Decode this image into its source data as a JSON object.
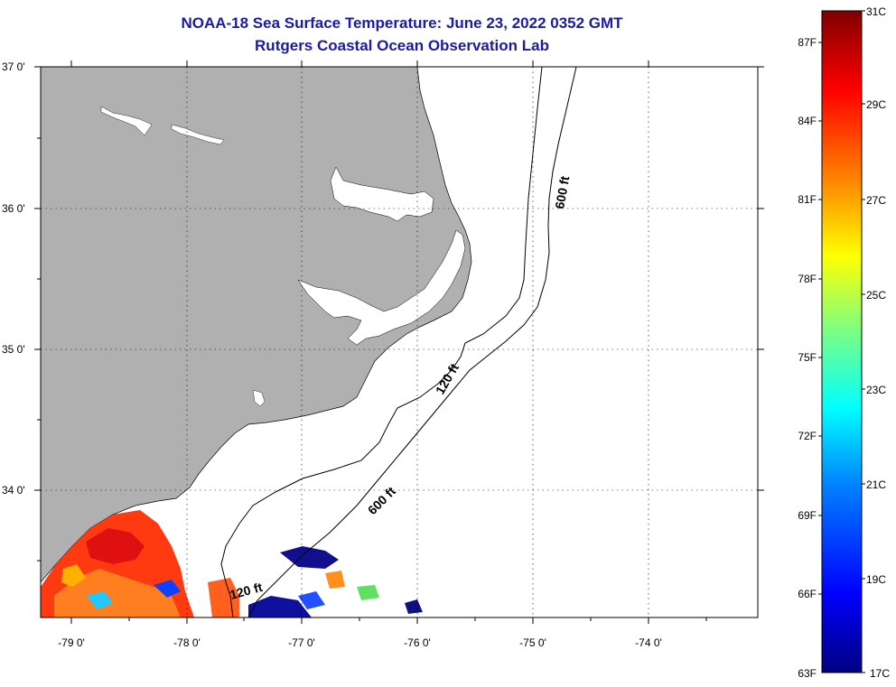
{
  "title": {
    "line1": "NOAA-18 Sea Surface Temperature:  June 23, 2022 0352 GMT",
    "line2": "Rutgers Coastal Ocean Observation Lab"
  },
  "map": {
    "lat_labels": [
      "37 0'",
      "36 0'",
      "35 0'",
      "34 0'"
    ],
    "lon_labels": [
      "-79 0'",
      "-78 0'",
      "-77 0'",
      "-76 0'",
      "-75 0'",
      "-74 0'"
    ],
    "isobath_labels": [
      {
        "text": "600 ft"
      },
      {
        "text": "120 ft"
      },
      {
        "text": "600 ft"
      },
      {
        "text": "120 ft"
      }
    ],
    "colors": {
      "land": "#b0b0b0",
      "ocean": "#ffffff",
      "grid": "#000000"
    }
  },
  "colorbar": {
    "celsius_labels": [
      "31C",
      "29C",
      "27C",
      "25C",
      "23C",
      "21C",
      "19C",
      "17C"
    ],
    "fahrenheit_labels": [
      "87F",
      "84F",
      "81F",
      "78F",
      "75F",
      "72F",
      "69F",
      "66F",
      "63F"
    ],
    "colormap": [
      "#00007f",
      "#0000ff",
      "#007fff",
      "#00ffff",
      "#7fff7f",
      "#ffff00",
      "#ff7f00",
      "#ff0000",
      "#7f0000"
    ]
  }
}
